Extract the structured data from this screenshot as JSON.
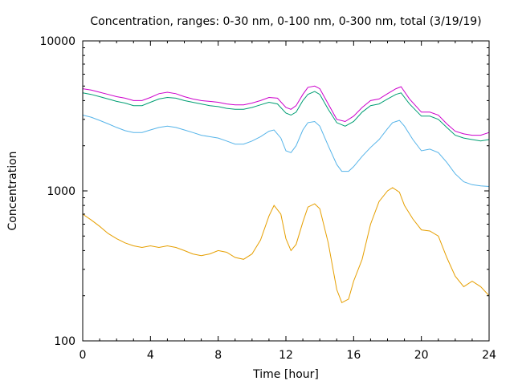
{
  "chart_data": {
    "type": "line",
    "title": "Concentration, ranges: 0-30 nm, 0-100 nm, 0-300 nm, total (3/19/19)",
    "xlabel": "Time [hour]",
    "ylabel": "Concentration",
    "xlim": [
      0,
      24
    ],
    "ylim": [
      100,
      10000
    ],
    "yscale": "log",
    "grid": false,
    "x_ticks": [
      0,
      4,
      8,
      12,
      16,
      20,
      24
    ],
    "y_ticks": [
      100,
      1000,
      10000
    ],
    "x_tick_labels": [
      "0",
      "4",
      "8",
      "12",
      "16",
      "20",
      "24"
    ],
    "y_tick_labels": [
      "100",
      "1000",
      "10000"
    ],
    "series": [
      {
        "color": "#e69f00",
        "x": [
          0,
          0.5,
          1,
          1.5,
          2,
          2.5,
          3,
          3.5,
          4,
          4.5,
          5,
          5.5,
          6,
          6.5,
          7,
          7.5,
          8,
          8.5,
          9,
          9.5,
          10,
          10.5,
          11,
          11.3,
          11.7,
          12,
          12.3,
          12.6,
          13,
          13.3,
          13.7,
          14,
          14.5,
          15,
          15.3,
          15.7,
          16,
          16.5,
          17,
          17.5,
          18,
          18.3,
          18.7,
          19,
          19.5,
          20,
          20.5,
          21,
          21.5,
          22,
          22.5,
          23,
          23.5,
          24
        ],
        "values": [
          700,
          640,
          580,
          520,
          480,
          450,
          430,
          420,
          430,
          420,
          430,
          420,
          400,
          380,
          370,
          380,
          400,
          390,
          360,
          350,
          380,
          470,
          680,
          800,
          700,
          480,
          400,
          440,
          620,
          780,
          820,
          760,
          450,
          220,
          180,
          190,
          250,
          350,
          600,
          850,
          1000,
          1050,
          980,
          800,
          650,
          550,
          540,
          500,
          360,
          270,
          230,
          250,
          230,
          200
        ]
      },
      {
        "color": "#56b4e9",
        "x": [
          0,
          0.5,
          1,
          1.5,
          2,
          2.5,
          3,
          3.5,
          4,
          4.5,
          5,
          5.5,
          6,
          6.5,
          7,
          7.5,
          8,
          8.5,
          9,
          9.5,
          10,
          10.5,
          11,
          11.3,
          11.7,
          12,
          12.3,
          12.6,
          13,
          13.3,
          13.7,
          14,
          14.5,
          15,
          15.3,
          15.7,
          16,
          16.5,
          17,
          17.5,
          18,
          18.3,
          18.7,
          19,
          19.5,
          20,
          20.5,
          21,
          21.5,
          22,
          22.5,
          23,
          23.5,
          24
        ],
        "values": [
          3200,
          3100,
          2950,
          2800,
          2650,
          2520,
          2450,
          2450,
          2550,
          2650,
          2700,
          2650,
          2550,
          2450,
          2350,
          2300,
          2250,
          2150,
          2050,
          2050,
          2150,
          2300,
          2500,
          2550,
          2250,
          1850,
          1800,
          2000,
          2550,
          2850,
          2900,
          2700,
          2000,
          1500,
          1350,
          1350,
          1450,
          1700,
          1950,
          2200,
          2600,
          2850,
          2950,
          2700,
          2200,
          1850,
          1900,
          1800,
          1550,
          1300,
          1150,
          1100,
          1080,
          1070
        ]
      },
      {
        "color": "#009e73",
        "x": [
          0,
          0.5,
          1,
          1.5,
          2,
          2.5,
          3,
          3.5,
          4,
          4.5,
          5,
          5.5,
          6,
          6.5,
          7,
          7.5,
          8,
          8.5,
          9,
          9.5,
          10,
          10.5,
          11,
          11.5,
          12,
          12.3,
          12.6,
          13,
          13.3,
          13.7,
          14,
          14.5,
          15,
          15.5,
          16,
          16.5,
          17,
          17.5,
          18,
          18.5,
          18.8,
          19.3,
          20,
          20.5,
          21,
          21.5,
          22,
          22.5,
          23,
          23.5,
          24
        ],
        "values": [
          4500,
          4400,
          4250,
          4100,
          3950,
          3850,
          3700,
          3700,
          3900,
          4100,
          4200,
          4150,
          4000,
          3900,
          3800,
          3700,
          3650,
          3550,
          3500,
          3500,
          3600,
          3750,
          3900,
          3800,
          3300,
          3200,
          3350,
          4000,
          4400,
          4600,
          4400,
          3500,
          2850,
          2700,
          2900,
          3350,
          3700,
          3800,
          4100,
          4400,
          4500,
          3800,
          3150,
          3150,
          3000,
          2650,
          2350,
          2250,
          2200,
          2150,
          2200
        ]
      },
      {
        "color": "#cc00cc",
        "x": [
          0,
          0.5,
          1,
          1.5,
          2,
          2.5,
          3,
          3.5,
          4,
          4.5,
          5,
          5.5,
          6,
          6.5,
          7,
          7.5,
          8,
          8.5,
          9,
          9.5,
          10,
          10.5,
          11,
          11.5,
          12,
          12.3,
          12.6,
          13,
          13.3,
          13.7,
          14,
          14.5,
          15,
          15.5,
          16,
          16.5,
          17,
          17.5,
          18,
          18.5,
          18.8,
          19.3,
          20,
          20.5,
          21,
          21.5,
          22,
          22.5,
          23,
          23.5,
          24
        ],
        "values": [
          4800,
          4700,
          4550,
          4400,
          4250,
          4150,
          4000,
          4000,
          4200,
          4450,
          4550,
          4450,
          4250,
          4100,
          4000,
          3950,
          3900,
          3800,
          3750,
          3750,
          3850,
          4000,
          4200,
          4150,
          3600,
          3500,
          3700,
          4400,
          4900,
          5000,
          4800,
          3800,
          3000,
          2900,
          3150,
          3600,
          4000,
          4100,
          4450,
          4800,
          4950,
          4100,
          3350,
          3350,
          3200,
          2800,
          2500,
          2400,
          2350,
          2350,
          2450
        ]
      }
    ]
  }
}
